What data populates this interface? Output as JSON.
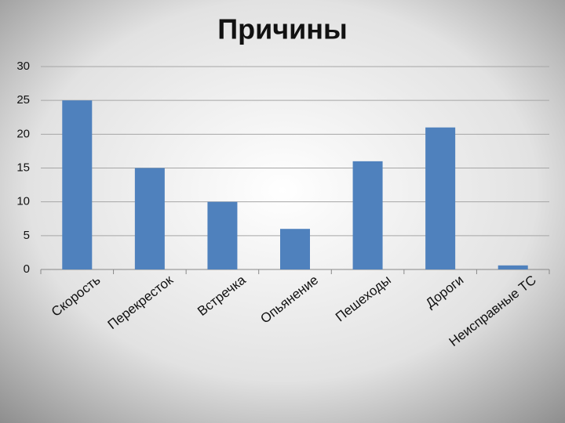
{
  "chart_data": {
    "type": "bar",
    "title": "Причины",
    "categories": [
      "Скорость",
      "Перекресток",
      "Встречка",
      "Опьянение",
      "Пешеходы",
      "Дороги",
      "Неисправные ТС"
    ],
    "values": [
      25,
      15,
      10,
      6,
      16,
      21,
      0.6
    ],
    "color": "#4f81bd",
    "ylim": [
      0,
      30
    ],
    "yticks": [
      0,
      5,
      10,
      15,
      20,
      25,
      30
    ],
    "grid": true
  }
}
